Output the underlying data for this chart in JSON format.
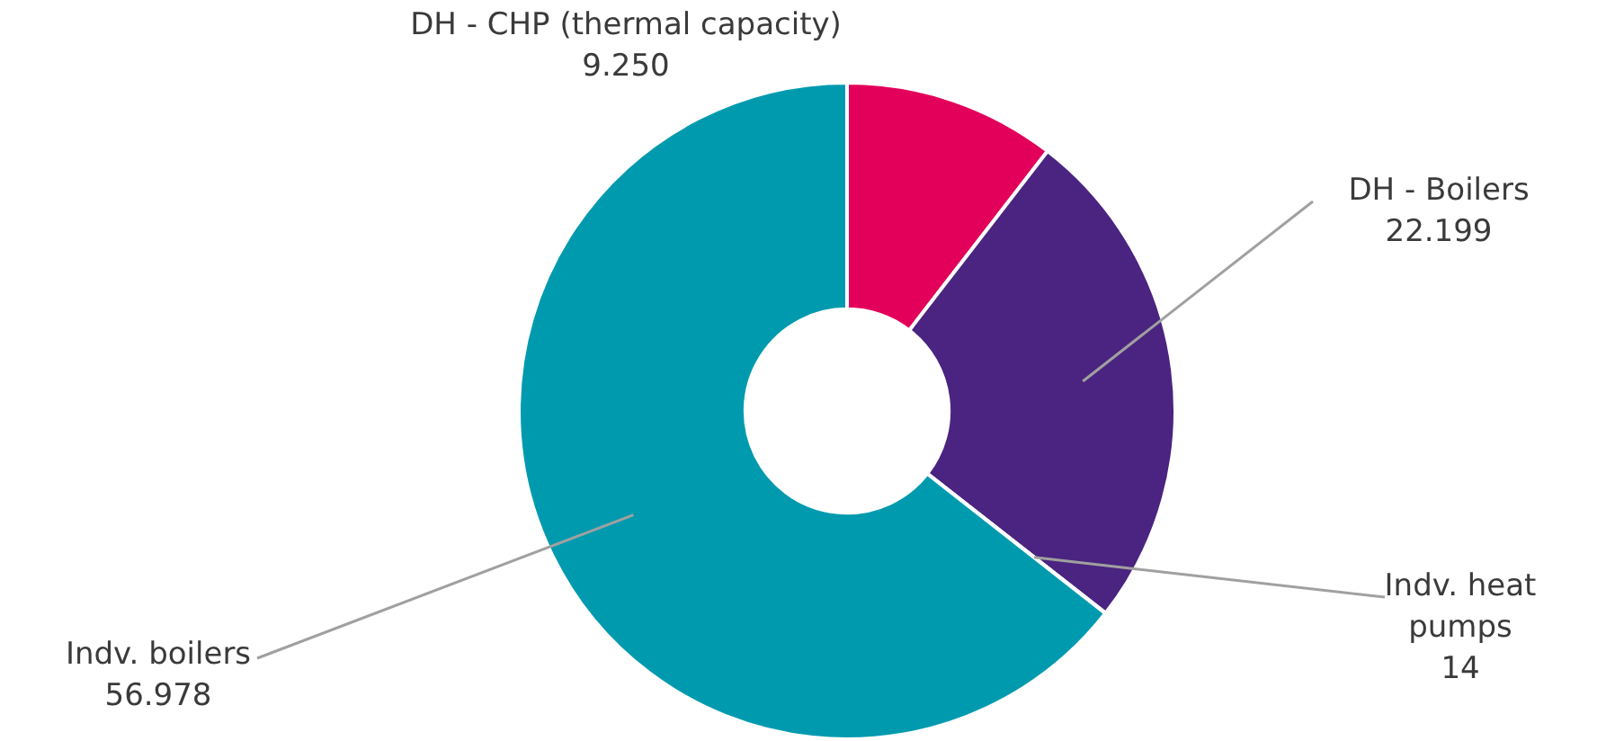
{
  "chart_data": {
    "type": "donut",
    "categories": [
      "DH - CHP (thermal capacity)",
      "DH - Boilers",
      "Indv. heat pumps",
      "Indv. boilers"
    ],
    "values": [
      9250,
      22199,
      14,
      56978
    ],
    "value_labels": [
      "9.250",
      "22.199",
      "14",
      "56.978"
    ],
    "colors": [
      "#e3005a",
      "#4a2480",
      "#8cc63f",
      "#009aaf"
    ],
    "legend": false
  }
}
